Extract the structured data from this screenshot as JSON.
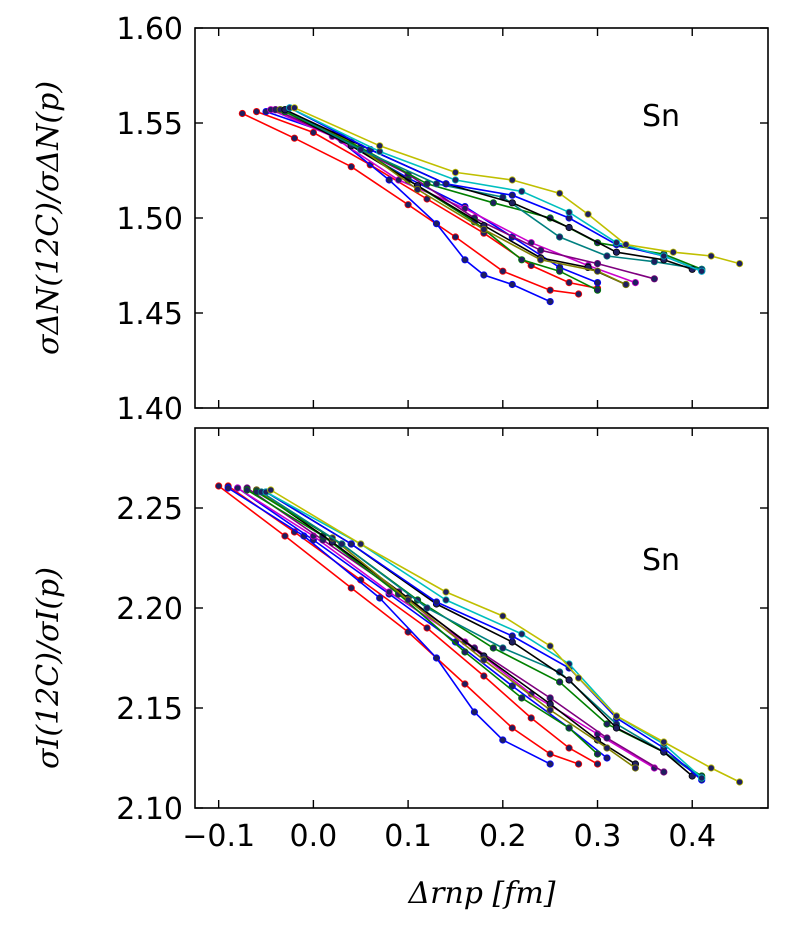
{
  "chart_data": [
    {
      "type": "line",
      "panel": "top",
      "title": "",
      "annotation": "Sn",
      "ylabel": "σΔN(12C)/σΔN(p)",
      "xlabel": "",
      "xlim": [
        -0.125,
        0.48
      ],
      "ylim": [
        1.4,
        1.6
      ],
      "yticks": [
        "1.40",
        "1.45",
        "1.50",
        "1.55",
        "1.60"
      ],
      "xticks": [
        "−0.1",
        "0.0",
        "0.1",
        "0.2",
        "0.3",
        "0.4"
      ],
      "series": [
        {
          "name": "red-1",
          "color": "#ff0000",
          "x": [
            -0.075,
            -0.02,
            0.04,
            0.1,
            0.15,
            0.2,
            0.25,
            0.28
          ],
          "y": [
            1.555,
            1.542,
            1.527,
            1.507,
            1.49,
            1.472,
            1.462,
            1.46
          ]
        },
        {
          "name": "red-2",
          "color": "#ff0000",
          "x": [
            -0.06,
            0.0,
            0.06,
            0.12,
            0.18,
            0.23,
            0.27,
            0.3
          ],
          "y": [
            1.556,
            1.545,
            1.528,
            1.51,
            1.492,
            1.475,
            1.466,
            1.463
          ]
        },
        {
          "name": "blue-1",
          "color": "#0000ff",
          "x": [
            -0.05,
            0.02,
            0.08,
            0.13,
            0.16,
            0.18,
            0.21,
            0.25
          ],
          "y": [
            1.556,
            1.544,
            1.52,
            1.497,
            1.478,
            1.47,
            1.465,
            1.456
          ]
        },
        {
          "name": "blue-2",
          "color": "#0000ff",
          "x": [
            -0.04,
            0.03,
            0.1,
            0.16,
            0.21,
            0.26,
            0.3
          ],
          "y": [
            1.557,
            1.541,
            1.521,
            1.506,
            1.49,
            1.474,
            1.466
          ]
        },
        {
          "name": "magenta",
          "color": "#cc00cc",
          "x": [
            -0.045,
            0.02,
            0.09,
            0.16,
            0.23,
            0.29,
            0.34
          ],
          "y": [
            1.557,
            1.543,
            1.52,
            1.505,
            1.487,
            1.475,
            1.466
          ]
        },
        {
          "name": "purple",
          "color": "#7f007f",
          "x": [
            -0.04,
            0.03,
            0.1,
            0.17,
            0.24,
            0.3,
            0.36
          ],
          "y": [
            1.557,
            1.541,
            1.523,
            1.5,
            1.483,
            1.476,
            1.468
          ]
        },
        {
          "name": "green-1",
          "color": "#008000",
          "x": [
            -0.035,
            0.03,
            0.1,
            0.17,
            0.22,
            0.26,
            0.3
          ],
          "y": [
            1.557,
            1.543,
            1.52,
            1.498,
            1.478,
            1.472,
            1.462
          ]
        },
        {
          "name": "black-1",
          "color": "#000000",
          "x": [
            -0.03,
            0.04,
            0.11,
            0.18,
            0.24,
            0.29,
            0.33
          ],
          "y": [
            1.556,
            1.538,
            1.517,
            1.496,
            1.479,
            1.474,
            1.465
          ]
        },
        {
          "name": "olive",
          "color": "#808000",
          "x": [
            -0.035,
            0.04,
            0.11,
            0.18,
            0.24,
            0.3,
            0.33
          ],
          "y": [
            1.557,
            1.54,
            1.515,
            1.494,
            1.478,
            1.472,
            1.465
          ]
        },
        {
          "name": "green-2",
          "color": "#008000",
          "x": [
            -0.03,
            0.05,
            0.12,
            0.19,
            0.25,
            0.3,
            0.37,
            0.41
          ],
          "y": [
            1.556,
            1.537,
            1.518,
            1.508,
            1.5,
            1.487,
            1.481,
            1.473
          ]
        },
        {
          "name": "teal",
          "color": "#008080",
          "x": [
            -0.03,
            0.05,
            0.13,
            0.2,
            0.26,
            0.31,
            0.36,
            0.41
          ],
          "y": [
            1.557,
            1.536,
            1.518,
            1.511,
            1.49,
            1.48,
            1.477,
            1.473
          ]
        },
        {
          "name": "black-2",
          "color": "#000000",
          "x": [
            -0.03,
            0.06,
            0.14,
            0.21,
            0.27,
            0.32,
            0.37,
            0.4
          ],
          "y": [
            1.557,
            1.536,
            1.518,
            1.508,
            1.495,
            1.482,
            1.478,
            1.473
          ]
        },
        {
          "name": "blue-3",
          "color": "#0000ff",
          "x": [
            -0.025,
            0.06,
            0.14,
            0.21,
            0.27,
            0.32,
            0.37,
            0.41
          ],
          "y": [
            1.558,
            1.536,
            1.518,
            1.512,
            1.5,
            1.486,
            1.48,
            1.472
          ]
        },
        {
          "name": "cyan",
          "color": "#00bfbf",
          "x": [
            -0.025,
            0.07,
            0.15,
            0.22,
            0.27,
            0.32,
            0.37,
            0.41
          ],
          "y": [
            1.558,
            1.535,
            1.52,
            1.514,
            1.503,
            1.487,
            1.48,
            1.472
          ]
        },
        {
          "name": "yellow-green",
          "color": "#bfbf00",
          "x": [
            -0.02,
            0.07,
            0.15,
            0.21,
            0.26,
            0.29,
            0.33,
            0.38,
            0.42,
            0.45
          ],
          "y": [
            1.558,
            1.538,
            1.524,
            1.52,
            1.513,
            1.502,
            1.486,
            1.482,
            1.48,
            1.476
          ]
        }
      ]
    },
    {
      "type": "line",
      "panel": "bottom",
      "title": "",
      "annotation": "Sn",
      "ylabel": "σI(12C)/σI(p)",
      "xlabel": "Δrnp  [fm]",
      "xlim": [
        -0.125,
        0.48
      ],
      "ylim": [
        2.1,
        2.29
      ],
      "yticks": [
        "2.10",
        "2.15",
        "2.20",
        "2.25"
      ],
      "xticks": [
        "−0.1",
        "0.0",
        "0.1",
        "0.2",
        "0.3",
        "0.4"
      ],
      "series": [
        {
          "name": "red-1",
          "color": "#ff0000",
          "x": [
            -0.1,
            -0.03,
            0.04,
            0.1,
            0.16,
            0.21,
            0.25,
            0.28
          ],
          "y": [
            2.261,
            2.236,
            2.21,
            2.188,
            2.162,
            2.14,
            2.127,
            2.122
          ]
        },
        {
          "name": "red-2",
          "color": "#ff0000",
          "x": [
            -0.09,
            -0.02,
            0.05,
            0.12,
            0.18,
            0.23,
            0.27,
            0.3
          ],
          "y": [
            2.261,
            2.238,
            2.214,
            2.19,
            2.166,
            2.145,
            2.13,
            2.122
          ]
        },
        {
          "name": "blue-1",
          "color": "#0000ff",
          "x": [
            -0.09,
            -0.01,
            0.07,
            0.13,
            0.17,
            0.2,
            0.25
          ],
          "y": [
            2.26,
            2.236,
            2.205,
            2.175,
            2.148,
            2.134,
            2.122
          ]
        },
        {
          "name": "blue-2",
          "color": "#0000ff",
          "x": [
            -0.08,
            0.0,
            0.08,
            0.15,
            0.21,
            0.27,
            0.31
          ],
          "y": [
            2.26,
            2.234,
            2.207,
            2.183,
            2.161,
            2.14,
            2.125
          ]
        },
        {
          "name": "magenta",
          "color": "#cc00cc",
          "x": [
            -0.08,
            0.0,
            0.08,
            0.16,
            0.23,
            0.3,
            0.36
          ],
          "y": [
            2.26,
            2.236,
            2.208,
            2.183,
            2.157,
            2.137,
            2.12
          ]
        },
        {
          "name": "purple",
          "color": "#7f007f",
          "x": [
            -0.07,
            0.01,
            0.09,
            0.17,
            0.25,
            0.31,
            0.37
          ],
          "y": [
            2.26,
            2.234,
            2.208,
            2.18,
            2.155,
            2.135,
            2.118
          ]
        },
        {
          "name": "green-1",
          "color": "#008000",
          "x": [
            -0.07,
            0.01,
            0.09,
            0.16,
            0.22,
            0.27,
            0.3
          ],
          "y": [
            2.259,
            2.236,
            2.207,
            2.178,
            2.155,
            2.14,
            2.127
          ]
        },
        {
          "name": "black-1",
          "color": "#000000",
          "x": [
            -0.06,
            0.02,
            0.1,
            0.18,
            0.25,
            0.3,
            0.34
          ],
          "y": [
            2.259,
            2.233,
            2.205,
            2.176,
            2.152,
            2.134,
            2.122
          ]
        },
        {
          "name": "olive",
          "color": "#808000",
          "x": [
            -0.06,
            0.02,
            0.1,
            0.18,
            0.25,
            0.31,
            0.34
          ],
          "y": [
            2.259,
            2.235,
            2.204,
            2.174,
            2.149,
            2.13,
            2.12
          ]
        },
        {
          "name": "green-2",
          "color": "#008000",
          "x": [
            -0.06,
            0.03,
            0.11,
            0.19,
            0.26,
            0.31,
            0.37,
            0.41
          ],
          "y": [
            2.258,
            2.232,
            2.204,
            2.18,
            2.163,
            2.142,
            2.128,
            2.116
          ]
        },
        {
          "name": "teal",
          "color": "#008080",
          "x": [
            -0.055,
            0.03,
            0.12,
            0.2,
            0.26,
            0.32,
            0.37,
            0.41
          ],
          "y": [
            2.258,
            2.232,
            2.2,
            2.18,
            2.168,
            2.142,
            2.128,
            2.115
          ]
        },
        {
          "name": "black-2",
          "color": "#000000",
          "x": [
            -0.05,
            0.04,
            0.13,
            0.21,
            0.27,
            0.32,
            0.37,
            0.4
          ],
          "y": [
            2.258,
            2.232,
            2.202,
            2.183,
            2.164,
            2.14,
            2.128,
            2.116
          ]
        },
        {
          "name": "blue-3",
          "color": "#0000ff",
          "x": [
            -0.05,
            0.04,
            0.13,
            0.21,
            0.27,
            0.32,
            0.37,
            0.41
          ],
          "y": [
            2.258,
            2.232,
            2.203,
            2.186,
            2.17,
            2.145,
            2.13,
            2.114
          ]
        },
        {
          "name": "cyan",
          "color": "#00bfbf",
          "x": [
            -0.05,
            0.05,
            0.14,
            0.22,
            0.27,
            0.32,
            0.37,
            0.41
          ],
          "y": [
            2.258,
            2.232,
            2.204,
            2.187,
            2.172,
            2.146,
            2.132,
            2.115
          ]
        },
        {
          "name": "yellow-green",
          "color": "#bfbf00",
          "x": [
            -0.045,
            0.05,
            0.14,
            0.2,
            0.25,
            0.28,
            0.32,
            0.37,
            0.42,
            0.45
          ],
          "y": [
            2.259,
            2.232,
            2.208,
            2.196,
            2.181,
            2.165,
            2.146,
            2.133,
            2.12,
            2.113
          ]
        }
      ]
    }
  ]
}
